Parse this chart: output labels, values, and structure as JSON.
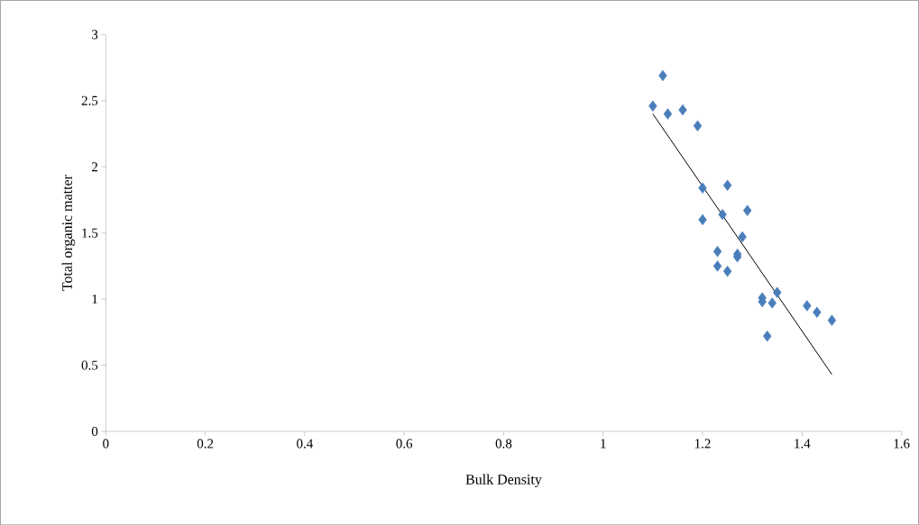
{
  "chart_data": {
    "type": "scatter",
    "xlabel": "Bulk Density",
    "ylabel": "Total organic matter",
    "marker": "diamond",
    "grid": false,
    "xlim": [
      0,
      1.6
    ],
    "xticks": [
      0,
      0.2,
      0.4,
      0.6,
      0.8,
      1,
      1.2,
      1.4,
      1.6
    ],
    "ylim": [
      0,
      3
    ],
    "yticks": [
      0,
      0.5,
      1,
      1.5,
      2,
      2.5,
      3
    ],
    "series": [
      {
        "color": "#4a7ebb",
        "x": [
          1.1,
          1.12,
          1.13,
          1.16,
          1.19,
          1.2,
          1.25,
          1.2,
          1.24,
          1.29,
          1.28,
          1.23,
          1.27,
          1.27,
          1.23,
          1.25,
          1.32,
          1.32,
          1.34,
          1.35,
          1.33,
          1.41,
          1.43,
          1.46
        ],
        "values": [
          2.46,
          2.69,
          2.4,
          2.43,
          2.31,
          1.84,
          1.86,
          1.6,
          1.64,
          1.67,
          1.47,
          1.36,
          1.32,
          1.34,
          1.25,
          1.21,
          1.01,
          0.98,
          0.97,
          1.05,
          0.72,
          0.95,
          0.9,
          0.84
        ]
      },
      {
        "type": "line",
        "color": "#000000",
        "marker": "none",
        "x": [
          1.1,
          1.46
        ],
        "values": [
          2.4,
          0.43
        ]
      }
    ]
  }
}
